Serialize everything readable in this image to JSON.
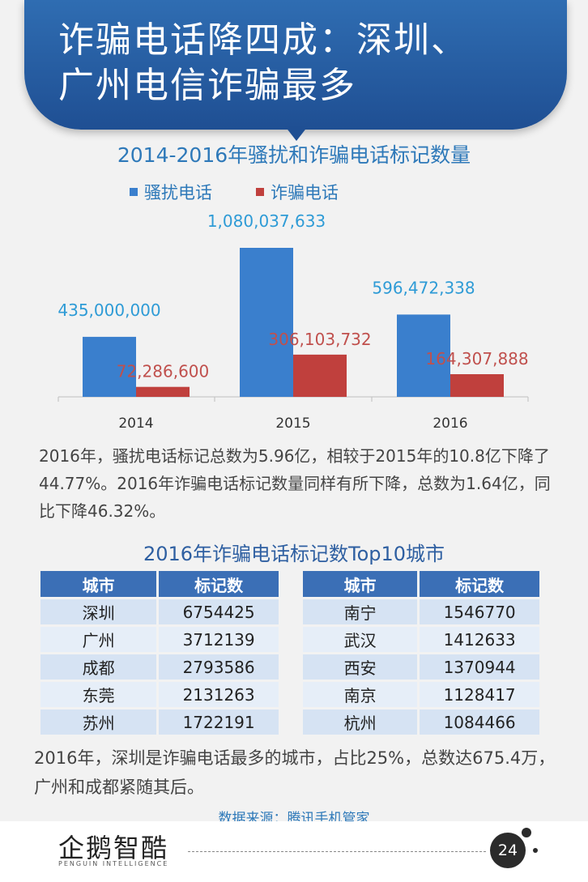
{
  "header": {
    "title_line1": "诈骗电话降四成：深圳、",
    "title_line2": "广州电信诈骗最多"
  },
  "colors": {
    "harass": "#3a7fcd",
    "fraud": "#c0403d",
    "accent": "#2e79b9"
  },
  "chart_data": {
    "type": "bar",
    "title": "2014-2016年骚扰和诈骗电话标记数量",
    "categories": [
      "2014",
      "2015",
      "2016"
    ],
    "series": [
      {
        "name": "骚扰电话",
        "values": [
          435000000,
          1080037633,
          596472338
        ],
        "labels": [
          "435,000,000",
          "1,080,037,633",
          "596,472,338"
        ]
      },
      {
        "name": "诈骗电话",
        "values": [
          72286600,
          306103732,
          164307888
        ],
        "labels": [
          "72,286,600",
          "306,103,732",
          "164,307,888"
        ]
      }
    ],
    "legend_position": "top-left",
    "grid": false
  },
  "paragraph1": "2016年，骚扰电话标记总数为5.96亿，相较于2015年的10.8亿下降了44.77%。2016年诈骗电话标记数量同样有所下降，总数为1.64亿，同比下降46.32%。",
  "table_title": "2016年诈骗电话标记数Top10城市",
  "table_headers": {
    "city": "城市",
    "count": "标记数"
  },
  "table_left": [
    {
      "city": "深圳",
      "count": "6754425"
    },
    {
      "city": "广州",
      "count": "3712139"
    },
    {
      "city": "成都",
      "count": "2793586"
    },
    {
      "city": "东莞",
      "count": "2131263"
    },
    {
      "city": "苏州",
      "count": "1722191"
    }
  ],
  "table_right": [
    {
      "city": "南宁",
      "count": "1546770"
    },
    {
      "city": "武汉",
      "count": "1412633"
    },
    {
      "city": "西安",
      "count": "1370944"
    },
    {
      "city": "南京",
      "count": "1128417"
    },
    {
      "city": "杭州",
      "count": "1084466"
    }
  ],
  "paragraph2": "2016年，深圳是诈骗电话最多的城市，占比25%，总数达675.4万，广州和成都紧随其后。",
  "source": "数据来源：腾讯手机管家",
  "footer": {
    "logo_cn": "企鹅智酷",
    "logo_en": "PENGUIN INTELLIGENCE",
    "page_number": "24"
  }
}
